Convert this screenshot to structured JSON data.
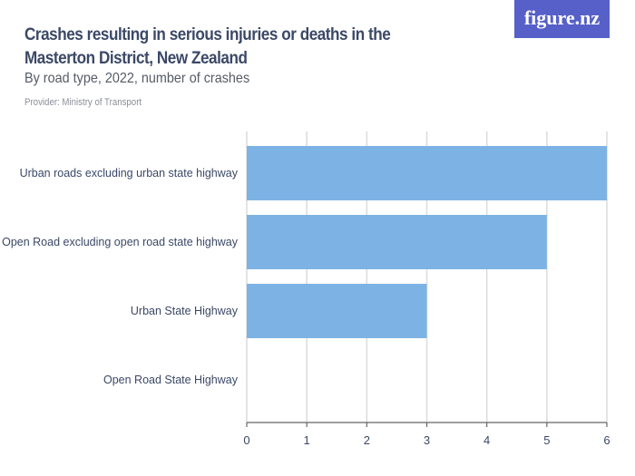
{
  "title": "Crashes resulting in serious injuries or deaths in the Masterton District, New Zealand",
  "subtitle": "By road type, 2022, number of crashes",
  "provider": "Provider: Ministry of Transport",
  "logo": "figure.nz",
  "colors": {
    "bar": "#7db3e4",
    "logo_bg": "#5660c8",
    "text": "#3b4866"
  },
  "chart_data": {
    "type": "bar",
    "orientation": "horizontal",
    "categories": [
      "Urban roads excluding urban state highway",
      "Open Road excluding open road state highway",
      "Urban State Highway",
      "Open Road State Highway"
    ],
    "values": [
      6,
      5,
      3,
      0
    ],
    "xlim": [
      0,
      6
    ],
    "xticks": [
      "0",
      "1",
      "2",
      "3",
      "4",
      "5",
      "6"
    ],
    "grid": true
  }
}
